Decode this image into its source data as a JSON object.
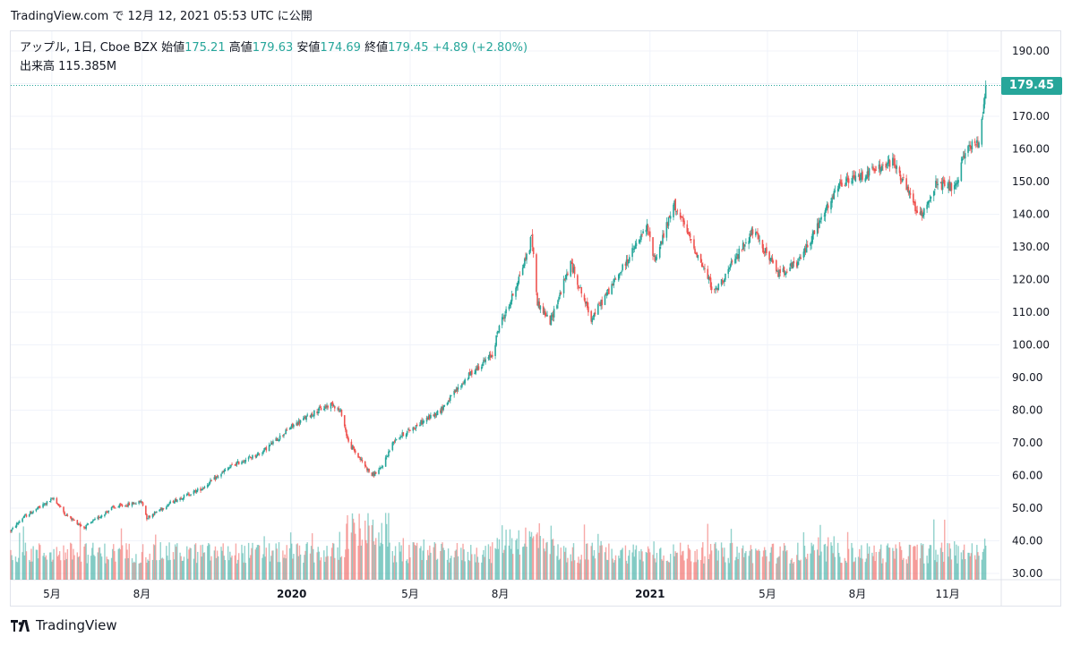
{
  "header": {
    "snapshot_line": "TradingView.com で 12月 12, 2021 05:53 UTC に公開"
  },
  "legend": {
    "symbol": "アップル, 1日, Cboe BZX",
    "open_label": "始値",
    "open": "175.21",
    "high_label": "高値",
    "high": "179.63",
    "low_label": "安値",
    "low": "174.69",
    "close_label": "終値",
    "close": "179.45",
    "change": "+4.89 (+2.80%)",
    "volume_label": "出来高",
    "volume": "115.385M"
  },
  "last_price_tag": "179.45",
  "footer": {
    "brand": "TradingView"
  },
  "colors": {
    "up": "#26a69a",
    "down": "#ef5350",
    "grid": "#f0f3fa",
    "axis": "#e0e3eb"
  },
  "chart_data": {
    "type": "candlestick",
    "title": "",
    "ylim": [
      29,
      193
    ],
    "y_ticks": [
      30,
      40,
      50,
      60,
      70,
      80,
      90,
      100,
      110,
      120,
      130,
      140,
      150,
      160,
      170,
      180,
      190
    ],
    "y_tick_labels": [
      "30.00",
      "40.00",
      "50.00",
      "60.00",
      "70.00",
      "80.00",
      "90.00",
      "100.00",
      "110.00",
      "120.00",
      "130.00",
      "140.00",
      "150.00",
      "160.00",
      "170.00",
      "180.00",
      "190.00"
    ],
    "x_range": [
      "2019-03-20",
      "2021-12-24"
    ],
    "x_ticks": [
      {
        "date": "2019-05-01",
        "label": "5月",
        "bold": false
      },
      {
        "date": "2019-08-01",
        "label": "8月",
        "bold": false
      },
      {
        "date": "2020-01-01",
        "label": "2020",
        "bold": true
      },
      {
        "date": "2020-05-01",
        "label": "5月",
        "bold": false
      },
      {
        "date": "2020-08-01",
        "label": "8月",
        "bold": false
      },
      {
        "date": "2021-01-01",
        "label": "2021",
        "bold": true
      },
      {
        "date": "2021-05-01",
        "label": "5月",
        "bold": false
      },
      {
        "date": "2021-08-01",
        "label": "8月",
        "bold": false
      },
      {
        "date": "2021-11-01",
        "label": "11月",
        "bold": false
      }
    ],
    "price_path": [
      [
        "2019-03-20",
        43
      ],
      [
        "2019-04-01",
        47
      ],
      [
        "2019-05-03",
        53
      ],
      [
        "2019-05-15",
        48
      ],
      [
        "2019-06-03",
        44
      ],
      [
        "2019-07-01",
        50
      ],
      [
        "2019-08-01",
        52
      ],
      [
        "2019-08-06",
        47
      ],
      [
        "2019-09-01",
        52
      ],
      [
        "2019-10-01",
        56
      ],
      [
        "2019-11-01",
        63
      ],
      [
        "2019-12-01",
        67
      ],
      [
        "2020-01-01",
        75
      ],
      [
        "2020-01-28",
        80
      ],
      [
        "2020-02-12",
        82
      ],
      [
        "2020-02-21",
        79
      ],
      [
        "2020-02-28",
        70
      ],
      [
        "2020-03-23",
        60
      ],
      [
        "2020-04-01",
        62
      ],
      [
        "2020-04-15",
        71
      ],
      [
        "2020-05-01",
        74
      ],
      [
        "2020-06-01",
        80
      ],
      [
        "2020-07-01",
        91
      ],
      [
        "2020-07-24",
        97
      ],
      [
        "2020-07-31",
        106
      ],
      [
        "2020-08-10",
        112
      ],
      [
        "2020-08-31",
        130
      ],
      [
        "2020-09-02",
        134
      ],
      [
        "2020-09-08",
        113
      ],
      [
        "2020-09-21",
        107
      ],
      [
        "2020-10-12",
        125
      ],
      [
        "2020-11-02",
        108
      ],
      [
        "2020-12-01",
        122
      ],
      [
        "2020-12-29",
        136
      ],
      [
        "2021-01-06",
        126
      ],
      [
        "2021-01-26",
        143
      ],
      [
        "2021-03-08",
        116
      ],
      [
        "2021-04-16",
        135
      ],
      [
        "2021-05-12",
        122
      ],
      [
        "2021-06-01",
        125
      ],
      [
        "2021-07-14",
        149
      ],
      [
        "2021-09-07",
        156
      ],
      [
        "2021-10-04",
        139
      ],
      [
        "2021-10-20",
        149
      ],
      [
        "2021-11-10",
        148
      ],
      [
        "2021-11-19",
        160
      ],
      [
        "2021-12-03",
        162
      ],
      [
        "2021-12-10",
        179.45
      ]
    ],
    "volume_overlay": "bottom"
  }
}
